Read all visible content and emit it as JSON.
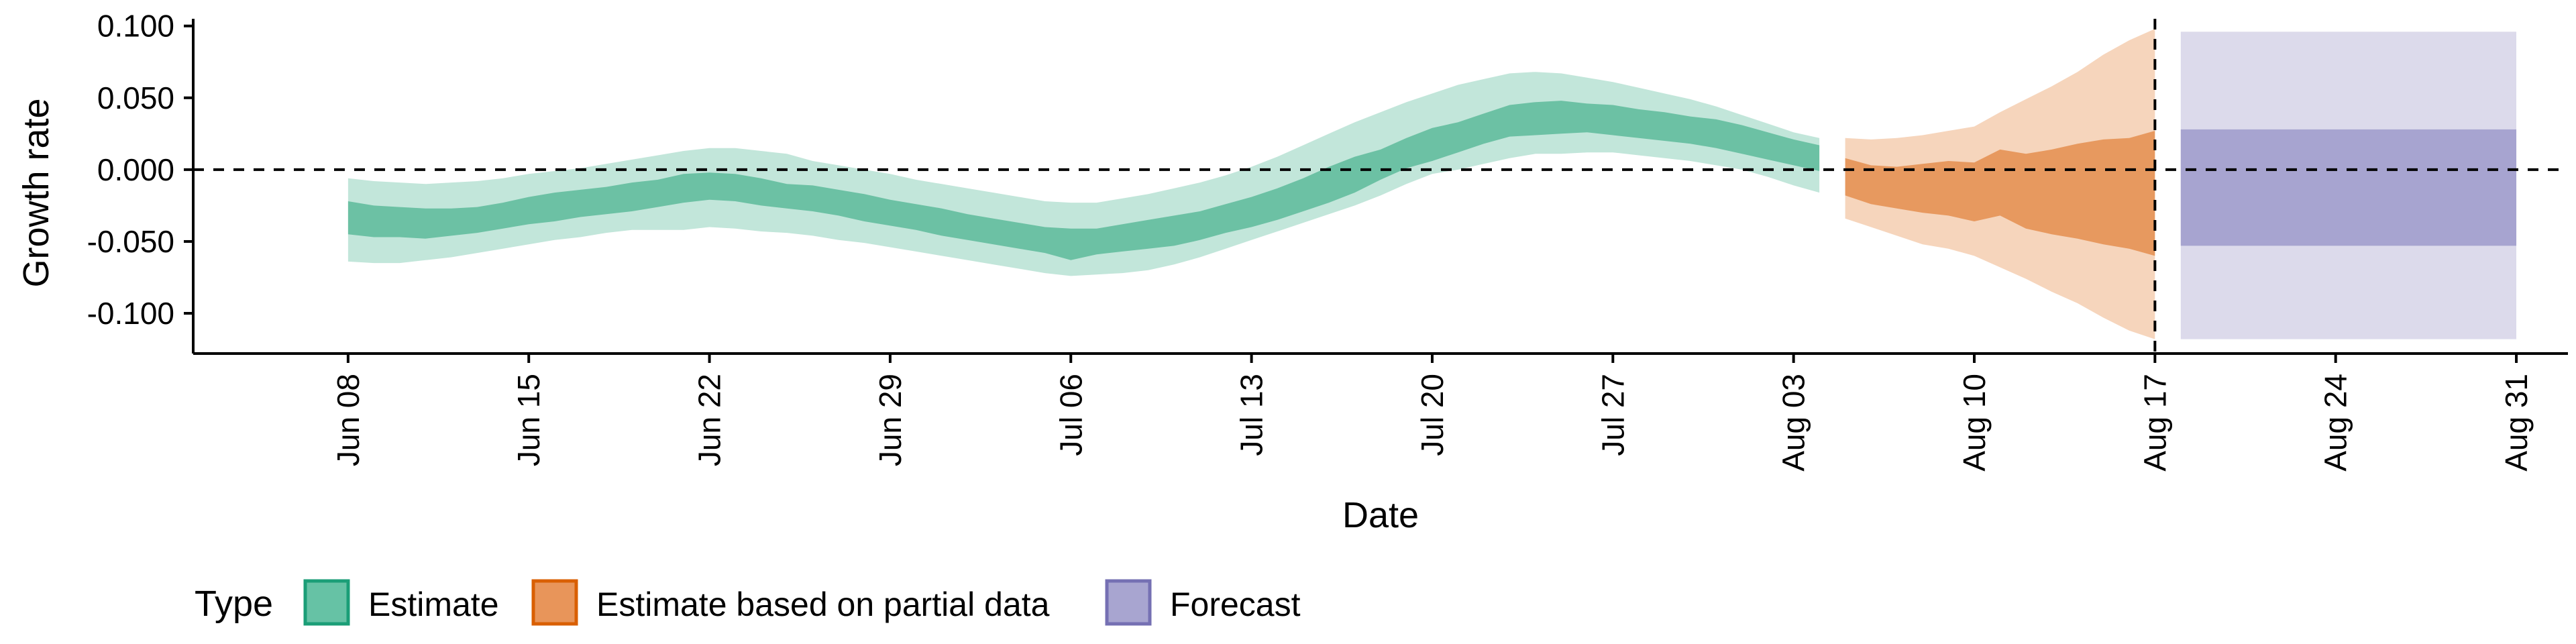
{
  "chart_data": {
    "type": "area",
    "xlabel": "Date",
    "ylabel": "Growth rate",
    "xlim": [
      "2020-06-02",
      "2020-09-02"
    ],
    "ylim": [
      -0.128,
      0.105
    ],
    "y_ticks": [
      0.1,
      0.05,
      0.0,
      -0.05,
      -0.1
    ],
    "y_tick_labels": [
      "0.100",
      "0.050",
      "0.000",
      "-0.050",
      "-0.100"
    ],
    "x_ticks": [
      "2020-06-08",
      "2020-06-15",
      "2020-06-22",
      "2020-06-29",
      "2020-07-06",
      "2020-07-13",
      "2020-07-20",
      "2020-07-27",
      "2020-08-03",
      "2020-08-10",
      "2020-08-17",
      "2020-08-24",
      "2020-08-31"
    ],
    "x_tick_labels": [
      "Jun 08",
      "Jun 15",
      "Jun 22",
      "Jun 29",
      "Jul 06",
      "Jul 13",
      "Jul 20",
      "Jul 27",
      "Aug 03",
      "Aug 10",
      "Aug 17",
      "Aug 24",
      "Aug 31"
    ],
    "reference_lines": {
      "horizontal_y": 0.0,
      "vertical_x": "2020-08-17",
      "style": "dashed"
    },
    "grid": false,
    "legend": {
      "title": "Type",
      "position": "bottom-left",
      "entries": [
        {
          "label": "Estimate",
          "fill": "#66c2a5",
          "stroke": "#1b9e77"
        },
        {
          "label": "Estimate based on partial data",
          "fill": "#e8955a",
          "stroke": "#d95f02"
        },
        {
          "label": "Forecast",
          "fill": "#a8a5d0",
          "stroke": "#7570b3"
        }
      ]
    },
    "series": [
      {
        "name": "Estimate",
        "color_outer": "#c2e6da",
        "color_inner": "#6cc1a4",
        "x": [
          "2020-06-08",
          "2020-06-09",
          "2020-06-10",
          "2020-06-11",
          "2020-06-12",
          "2020-06-13",
          "2020-06-14",
          "2020-06-15",
          "2020-06-16",
          "2020-06-17",
          "2020-06-18",
          "2020-06-19",
          "2020-06-20",
          "2020-06-21",
          "2020-06-22",
          "2020-06-23",
          "2020-06-24",
          "2020-06-25",
          "2020-06-26",
          "2020-06-27",
          "2020-06-28",
          "2020-06-29",
          "2020-06-30",
          "2020-07-01",
          "2020-07-02",
          "2020-07-03",
          "2020-07-04",
          "2020-07-05",
          "2020-07-06",
          "2020-07-07",
          "2020-07-08",
          "2020-07-09",
          "2020-07-10",
          "2020-07-11",
          "2020-07-12",
          "2020-07-13",
          "2020-07-14",
          "2020-07-15",
          "2020-07-16",
          "2020-07-17",
          "2020-07-18",
          "2020-07-19",
          "2020-07-20",
          "2020-07-21",
          "2020-07-22",
          "2020-07-23",
          "2020-07-24",
          "2020-07-25",
          "2020-07-26",
          "2020-07-27",
          "2020-07-28",
          "2020-07-29",
          "2020-07-30",
          "2020-07-31",
          "2020-08-01",
          "2020-08-02",
          "2020-08-03",
          "2020-08-04"
        ],
        "median": [
          -0.033,
          -0.035,
          -0.036,
          -0.037,
          -0.037,
          -0.035,
          -0.032,
          -0.028,
          -0.026,
          -0.024,
          -0.022,
          -0.019,
          -0.017,
          -0.014,
          -0.012,
          -0.013,
          -0.015,
          -0.018,
          -0.02,
          -0.024,
          -0.027,
          -0.03,
          -0.033,
          -0.036,
          -0.04,
          -0.043,
          -0.046,
          -0.049,
          -0.05,
          -0.05,
          -0.049,
          -0.047,
          -0.045,
          -0.042,
          -0.037,
          -0.032,
          -0.027,
          -0.022,
          -0.016,
          -0.008,
          0.0,
          0.008,
          0.014,
          0.021,
          0.027,
          0.03,
          0.032,
          0.034,
          0.035,
          0.034,
          0.032,
          0.03,
          0.028,
          0.025,
          0.022,
          0.018,
          0.013,
          0.01
        ],
        "inner_lower": [
          -0.045,
          -0.047,
          -0.047,
          -0.048,
          -0.046,
          -0.044,
          -0.041,
          -0.038,
          -0.036,
          -0.033,
          -0.031,
          -0.029,
          -0.026,
          -0.023,
          -0.021,
          -0.022,
          -0.025,
          -0.027,
          -0.029,
          -0.032,
          -0.036,
          -0.039,
          -0.042,
          -0.046,
          -0.049,
          -0.052,
          -0.055,
          -0.058,
          -0.063,
          -0.059,
          -0.057,
          -0.055,
          -0.053,
          -0.049,
          -0.044,
          -0.04,
          -0.035,
          -0.029,
          -0.023,
          -0.016,
          -0.007,
          0.001,
          0.006,
          0.012,
          0.018,
          0.023,
          0.024,
          0.025,
          0.026,
          0.024,
          0.022,
          0.02,
          0.018,
          0.015,
          0.011,
          0.007,
          0.003,
          -0.001
        ],
        "inner_upper": [
          -0.022,
          -0.025,
          -0.026,
          -0.027,
          -0.027,
          -0.026,
          -0.023,
          -0.019,
          -0.016,
          -0.014,
          -0.012,
          -0.009,
          -0.007,
          -0.003,
          -0.002,
          -0.003,
          -0.006,
          -0.01,
          -0.011,
          -0.014,
          -0.017,
          -0.021,
          -0.024,
          -0.027,
          -0.031,
          -0.034,
          -0.037,
          -0.04,
          -0.041,
          -0.041,
          -0.038,
          -0.035,
          -0.032,
          -0.029,
          -0.024,
          -0.019,
          -0.013,
          -0.006,
          0.002,
          0.009,
          0.014,
          0.022,
          0.029,
          0.033,
          0.039,
          0.045,
          0.047,
          0.048,
          0.046,
          0.045,
          0.042,
          0.04,
          0.037,
          0.035,
          0.031,
          0.026,
          0.021,
          0.017
        ],
        "outer_lower": [
          -0.064,
          -0.065,
          -0.065,
          -0.063,
          -0.061,
          -0.058,
          -0.055,
          -0.052,
          -0.049,
          -0.047,
          -0.044,
          -0.042,
          -0.042,
          -0.042,
          -0.04,
          -0.041,
          -0.043,
          -0.044,
          -0.046,
          -0.049,
          -0.051,
          -0.054,
          -0.057,
          -0.06,
          -0.063,
          -0.066,
          -0.069,
          -0.072,
          -0.074,
          -0.073,
          -0.072,
          -0.07,
          -0.066,
          -0.061,
          -0.055,
          -0.049,
          -0.043,
          -0.037,
          -0.031,
          -0.025,
          -0.018,
          -0.01,
          -0.003,
          0.0,
          0.004,
          0.008,
          0.011,
          0.011,
          0.012,
          0.012,
          0.01,
          0.008,
          0.006,
          0.003,
          0.0,
          -0.005,
          -0.011,
          -0.016
        ],
        "outer_upper": [
          -0.006,
          -0.008,
          -0.009,
          -0.01,
          -0.009,
          -0.008,
          -0.006,
          -0.003,
          -0.001,
          0.001,
          0.004,
          0.007,
          0.01,
          0.013,
          0.015,
          0.015,
          0.013,
          0.011,
          0.006,
          0.003,
          0.0,
          -0.003,
          -0.007,
          -0.01,
          -0.013,
          -0.016,
          -0.019,
          -0.022,
          -0.023,
          -0.023,
          -0.02,
          -0.017,
          -0.013,
          -0.009,
          -0.004,
          0.002,
          0.009,
          0.017,
          0.025,
          0.033,
          0.04,
          0.047,
          0.053,
          0.059,
          0.063,
          0.067,
          0.068,
          0.067,
          0.064,
          0.061,
          0.057,
          0.053,
          0.049,
          0.044,
          0.038,
          0.032,
          0.026,
          0.022
        ]
      },
      {
        "name": "Estimate based on partial data",
        "color_outer": "#f6d5bc",
        "color_inner": "#e7995f",
        "x": [
          "2020-08-05",
          "2020-08-06",
          "2020-08-07",
          "2020-08-08",
          "2020-08-09",
          "2020-08-10",
          "2020-08-11",
          "2020-08-12",
          "2020-08-13",
          "2020-08-14",
          "2020-08-15",
          "2020-08-16",
          "2020-08-17"
        ],
        "inner_lower": [
          -0.018,
          -0.024,
          -0.027,
          -0.03,
          -0.032,
          -0.036,
          -0.032,
          -0.041,
          -0.045,
          -0.048,
          -0.052,
          -0.055,
          -0.06
        ],
        "inner_upper": [
          0.008,
          0.003,
          0.002,
          0.004,
          0.006,
          0.005,
          0.014,
          0.011,
          0.014,
          0.018,
          0.021,
          0.022,
          0.027
        ],
        "outer_lower": [
          -0.034,
          -0.04,
          -0.046,
          -0.052,
          -0.055,
          -0.06,
          -0.068,
          -0.076,
          -0.085,
          -0.093,
          -0.103,
          -0.112,
          -0.118
        ],
        "outer_upper": [
          0.022,
          0.021,
          0.022,
          0.024,
          0.027,
          0.03,
          0.04,
          0.049,
          0.058,
          0.068,
          0.08,
          0.09,
          0.098
        ]
      },
      {
        "name": "Forecast",
        "color_outer": "#dcdaeb",
        "color_inner": "#a7a4d0",
        "x": [
          "2020-08-18",
          "2020-08-31"
        ],
        "inner_lower": [
          -0.053,
          -0.053
        ],
        "inner_upper": [
          0.028,
          0.028
        ],
        "outer_lower": [
          -0.118,
          -0.118
        ],
        "outer_upper": [
          0.096,
          0.096
        ]
      }
    ]
  }
}
